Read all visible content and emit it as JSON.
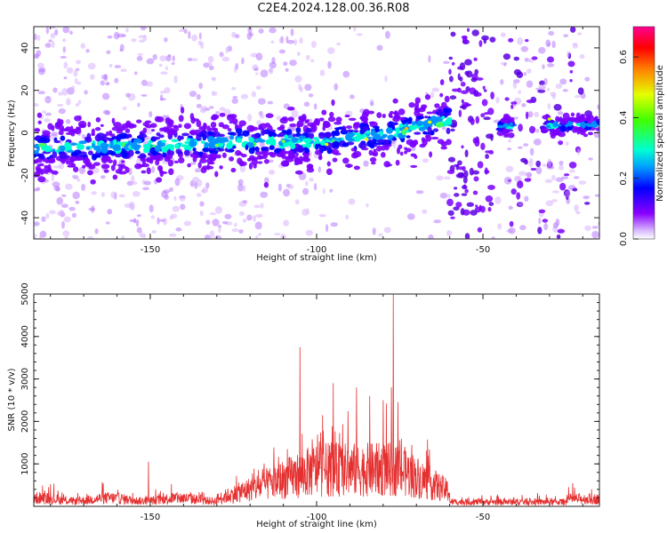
{
  "title": "C2E4.2024.128.00.36.R08",
  "chart_data": [
    {
      "type": "heatmap",
      "xlabel": "Height of straight line (km)",
      "ylabel": "Frequency (Hz)",
      "xlim": [
        -185,
        -15
      ],
      "ylim": [
        -50,
        50
      ],
      "xticks": [
        -150,
        -100,
        -50
      ],
      "yticks": [
        -40,
        -20,
        0,
        20,
        40
      ],
      "colorbar": {
        "label": "Normalized spectral amplitude",
        "range": [
          0.0,
          0.7
        ],
        "ticks": [
          0.0,
          0.2,
          0.4,
          0.6
        ],
        "colors": [
          "#ffffff",
          "#8a00ff",
          "#0000ff",
          "#00e5ff",
          "#00ff40",
          "#e5ff00",
          "#ff8000",
          "#ff0000",
          "#ff0090"
        ]
      },
      "ridge": [
        [
          -185,
          -7
        ],
        [
          -150,
          -6
        ],
        [
          -120,
          -4
        ],
        [
          -100,
          -4
        ],
        [
          -80,
          -1
        ],
        [
          -60,
          6
        ],
        [
          -45,
          3
        ],
        [
          -15,
          4
        ]
      ]
    },
    {
      "type": "line",
      "xlabel": "Height of straight line (km)",
      "ylabel": "SNR (10 * v/v)",
      "xlim": [
        -185,
        -15
      ],
      "ylim": [
        0,
        5000
      ],
      "xticks": [
        -150,
        -100,
        -50
      ],
      "yticks": [
        1000,
        2000,
        3000,
        4000,
        5000
      ],
      "color": "#e53030",
      "peaks": [
        {
          "x": -150.5,
          "y": 1050
        },
        {
          "x": -105,
          "y": 3750
        },
        {
          "x": -95,
          "y": 2900
        },
        {
          "x": -88,
          "y": 2800
        },
        {
          "x": -84,
          "y": 2600
        },
        {
          "x": -80,
          "y": 2500
        },
        {
          "x": -77,
          "y": 5000
        }
      ]
    }
  ]
}
